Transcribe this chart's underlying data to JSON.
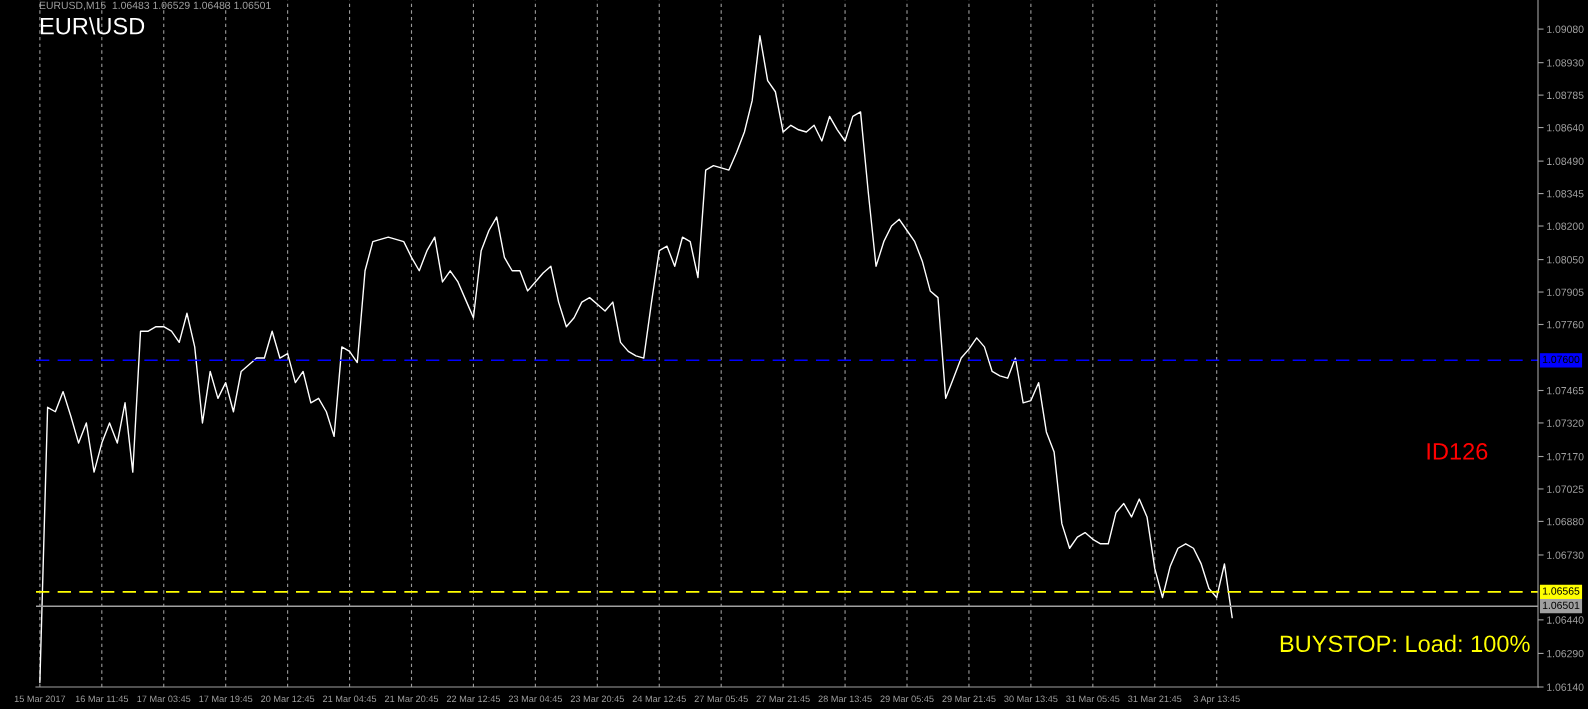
{
  "chart_data": {
    "type": "line",
    "title": "EUR\\USD",
    "annotations": [
      "EURUSD,M15  1.06483 1.06529 1.06483 1.06501",
      "ID126",
      "BUYSTOP: Load: 100%"
    ],
    "categories": [
      "15 Mar 2017",
      null,
      null,
      null,
      null,
      null,
      null,
      null,
      "16 Mar 11:45",
      null,
      null,
      null,
      null,
      null,
      null,
      null,
      "17 Mar 03:45",
      null,
      null,
      null,
      null,
      null,
      null,
      null,
      "17 Mar 19:45",
      null,
      null,
      null,
      null,
      null,
      null,
      null,
      "20 Mar 12:45",
      null,
      null,
      null,
      null,
      null,
      null,
      null,
      "21 Mar 04:45",
      null,
      null,
      null,
      null,
      null,
      null,
      null,
      "21 Mar 20:45",
      null,
      null,
      null,
      null,
      null,
      null,
      null,
      "22 Mar 12:45",
      null,
      null,
      null,
      null,
      null,
      null,
      null,
      "23 Mar 04:45",
      null,
      null,
      null,
      null,
      null,
      null,
      null,
      "23 Mar 20:45",
      null,
      null,
      null,
      null,
      null,
      null,
      null,
      "24 Mar 12:45",
      null,
      null,
      null,
      null,
      null,
      null,
      null,
      "27 Mar 05:45",
      null,
      null,
      null,
      null,
      null,
      null,
      null,
      "27 Mar 21:45",
      null,
      null,
      null,
      null,
      null,
      null,
      null,
      "28 Mar 13:45",
      null,
      null,
      null,
      null,
      null,
      null,
      null,
      "29 Mar 05:45",
      null,
      null,
      null,
      null,
      null,
      null,
      null,
      "29 Mar 21:45",
      null,
      null,
      null,
      null,
      null,
      null,
      null,
      "30 Mar 13:45",
      null,
      null,
      null,
      null,
      null,
      null,
      null,
      "31 Mar 05:45",
      null,
      null,
      null,
      null,
      null,
      null,
      null,
      "31 Mar 21:45",
      null,
      null,
      null,
      null,
      null,
      null,
      null,
      "3 Apr 13:45",
      null,
      null,
      null,
      null,
      null,
      null,
      null,
      null,
      null,
      null,
      null,
      null,
      null,
      null,
      null,
      null,
      null,
      null,
      null,
      null,
      null,
      null,
      null,
      null,
      null,
      null,
      null,
      null,
      null,
      null,
      null,
      null,
      null,
      null,
      null,
      null,
      null,
      null,
      null,
      null,
      null
    ],
    "series": [
      {
        "color": "#ffffff",
        "values": [
          1.0616,
          1.0739,
          1.0737,
          1.0746,
          1.0735,
          1.0723,
          1.0732,
          1.071,
          1.0723,
          1.0732,
          1.0723,
          1.0741,
          1.071,
          1.0773,
          1.0773,
          1.0775,
          1.0775,
          1.0773,
          1.0768,
          1.0781,
          1.0766,
          1.0732,
          1.0755,
          1.0743,
          1.075,
          1.0737,
          1.0755,
          1.0758,
          1.0761,
          1.0761,
          1.0773,
          1.0761,
          1.0763,
          1.075,
          1.0755,
          1.0741,
          1.0743,
          1.0737,
          1.0726,
          1.0766,
          1.0764,
          1.0759,
          1.08,
          1.0813,
          1.0814,
          1.0815,
          1.0814,
          1.0813,
          1.0806,
          1.08,
          1.0809,
          1.0815,
          1.0795,
          1.08,
          1.0795,
          1.0787,
          1.0779,
          1.0809,
          1.0818,
          1.0824,
          1.0806,
          1.08,
          1.08,
          1.0791,
          1.0795,
          1.0799,
          1.0802,
          1.0786,
          1.0775,
          1.0779,
          1.0786,
          1.0788,
          1.0785,
          1.0782,
          1.0786,
          1.0768,
          1.0764,
          1.0762,
          1.0761,
          1.0786,
          1.0809,
          1.0811,
          1.0802,
          1.0815,
          1.0813,
          1.0797,
          1.0845,
          1.0847,
          1.0846,
          1.0845,
          1.0853,
          1.0862,
          1.0876,
          1.0905,
          1.0885,
          1.088,
          1.0862,
          1.0865,
          1.0863,
          1.0862,
          1.0865,
          1.0858,
          1.0869,
          1.0863,
          1.0858,
          1.0869,
          1.0871,
          1.0835,
          1.0802,
          1.0813,
          1.082,
          1.0823,
          1.0818,
          1.0813,
          1.0804,
          1.0791,
          1.0788,
          1.0743,
          1.0752,
          1.0761,
          1.0765,
          1.077,
          1.0766,
          1.0755,
          1.0753,
          1.0752,
          1.0761,
          1.0741,
          1.0742,
          1.075,
          1.0728,
          1.0719,
          1.0687,
          1.0676,
          1.0681,
          1.0683,
          1.068,
          1.0678,
          1.0678,
          1.0692,
          1.0696,
          1.069,
          1.0698,
          1.069,
          1.0667,
          1.0654,
          1.0668,
          1.0676,
          1.0678,
          1.0676,
          1.0669,
          1.0658,
          1.0654,
          1.0669,
          1.0645,
          null,
          null,
          null,
          null,
          null,
          null,
          null,
          null,
          null,
          null,
          null,
          null,
          null,
          null,
          null,
          null,
          null,
          null,
          null,
          null,
          null,
          null,
          null,
          null,
          null,
          null,
          null,
          null,
          null,
          null,
          null,
          null,
          null,
          null,
          null,
          null,
          null,
          null,
          null
        ]
      }
    ],
    "ylim": [
      1.0614,
      1.0921
    ],
    "yticks": [
      {
        "value": 1.0908,
        "label": "1.09080"
      },
      {
        "value": 1.0893,
        "label": "1.08930"
      },
      {
        "value": 1.08785,
        "label": "1.08785"
      },
      {
        "value": 1.0864,
        "label": "1.08640"
      },
      {
        "value": 1.0849,
        "label": "1.08490"
      },
      {
        "value": 1.08345,
        "label": "1.08345"
      },
      {
        "value": 1.082,
        "label": "1.08200"
      },
      {
        "value": 1.0805,
        "label": "1.08050"
      },
      {
        "value": 1.07905,
        "label": "1.07905"
      },
      {
        "value": 1.0776,
        "label": "1.07760"
      },
      {
        "value": 1.07465,
        "label": "1.07465"
      },
      {
        "value": 1.0732,
        "label": "1.07320"
      },
      {
        "value": 1.0717,
        "label": "1.07170"
      },
      {
        "value": 1.07025,
        "label": "1.07025"
      },
      {
        "value": 1.0688,
        "label": "1.06880"
      },
      {
        "value": 1.0673,
        "label": "1.06730"
      },
      {
        "value": 1.0644,
        "label": "1.06440"
      },
      {
        "value": 1.0629,
        "label": "1.06290"
      },
      {
        "value": 1.0614,
        "label": "1.06140"
      }
    ],
    "ref_lines": [
      {
        "axis": "y",
        "value": 1.076,
        "label": "1.07600",
        "color": "#0000ff",
        "line_style": "dashed"
      },
      {
        "axis": "y",
        "value": 1.06565,
        "label": "1.06565",
        "color": "#ffff00",
        "line_style": "dashed"
      },
      {
        "axis": "y",
        "value": 1.06501,
        "label": "1.06501",
        "color": "#a0a0a0",
        "line_style": "solid"
      }
    ],
    "grid": "x"
  }
}
